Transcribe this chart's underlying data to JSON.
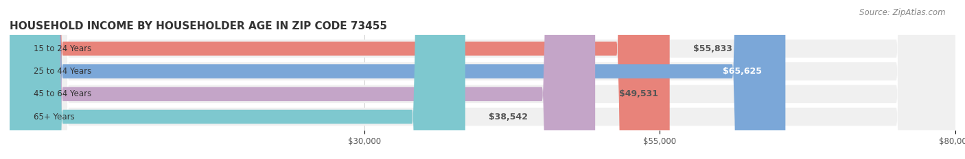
{
  "title": "HOUSEHOLD INCOME BY HOUSEHOLDER AGE IN ZIP CODE 73455",
  "source": "Source: ZipAtlas.com",
  "categories": [
    "15 to 24 Years",
    "25 to 44 Years",
    "45 to 64 Years",
    "65+ Years"
  ],
  "values": [
    55833,
    65625,
    49531,
    38542
  ],
  "labels": [
    "$55,833",
    "$65,625",
    "$49,531",
    "$38,542"
  ],
  "bar_colors": [
    "#E8837A",
    "#7BA7D8",
    "#C4A5C8",
    "#7EC8CF"
  ],
  "bar_bg_color": "#F0F0F0",
  "label_inside_color": "#FFFFFF",
  "label_outside_color": "#555555",
  "xmin": 0,
  "xmax": 80000,
  "xticks": [
    30000,
    55000,
    80000
  ],
  "xticklabels": [
    "$30,000",
    "$55,000",
    "$80,000"
  ],
  "title_fontsize": 11,
  "source_fontsize": 8.5,
  "bar_label_fontsize": 9,
  "category_fontsize": 8.5,
  "tick_fontsize": 8.5,
  "background_color": "#FFFFFF",
  "label_threshold": 60000
}
